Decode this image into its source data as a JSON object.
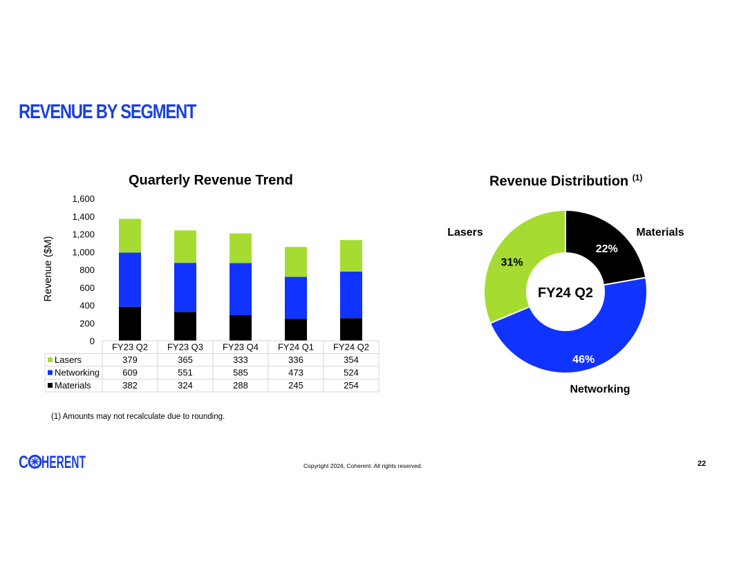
{
  "slide": {
    "title": "REVENUE BY SEGMENT",
    "footnote": "(1)  Amounts may not recalculate due to rounding.",
    "copyright": "Copyright 2024, Coherent. All rights reserved.",
    "page_number": "22",
    "logo_text": "C  HERENT",
    "brand_color": "#1a3fe0"
  },
  "chart_data": [
    {
      "type": "bar",
      "stacked": true,
      "title": "Quarterly Revenue Trend",
      "ylabel": "Revenue ($M)",
      "xlabel": "",
      "ylim": [
        0,
        1600
      ],
      "yticks": [
        "0",
        "200",
        "400",
        "600",
        "800",
        "1,000",
        "1,200",
        "1,400",
        "1,600"
      ],
      "grid": false,
      "legend": "data-table",
      "categories": [
        "FY23 Q2",
        "FY23 Q3",
        "FY23 Q4",
        "FY24 Q1",
        "FY24 Q2"
      ],
      "series": [
        {
          "name": "Materials",
          "color": "#000000",
          "values": [
            382,
            324,
            288,
            245,
            254
          ]
        },
        {
          "name": "Networking",
          "color": "#1133ff",
          "values": [
            609,
            551,
            585,
            473,
            524
          ]
        },
        {
          "name": "Lasers",
          "color": "#a6dc32",
          "values": [
            379,
            365,
            333,
            336,
            354
          ]
        }
      ],
      "table_row_order": [
        "Lasers",
        "Networking",
        "Materials"
      ]
    },
    {
      "type": "pie",
      "donut": true,
      "title": "Revenue Distribution",
      "title_note": "(1)",
      "center_label": "FY24 Q2",
      "slices": [
        {
          "name": "Materials",
          "value": 22,
          "label": "22%",
          "color": "#000000"
        },
        {
          "name": "Networking",
          "value": 46,
          "label": "46%",
          "color": "#1133ff"
        },
        {
          "name": "Lasers",
          "value": 31,
          "label": "31%",
          "color": "#a6dc32"
        }
      ]
    }
  ]
}
